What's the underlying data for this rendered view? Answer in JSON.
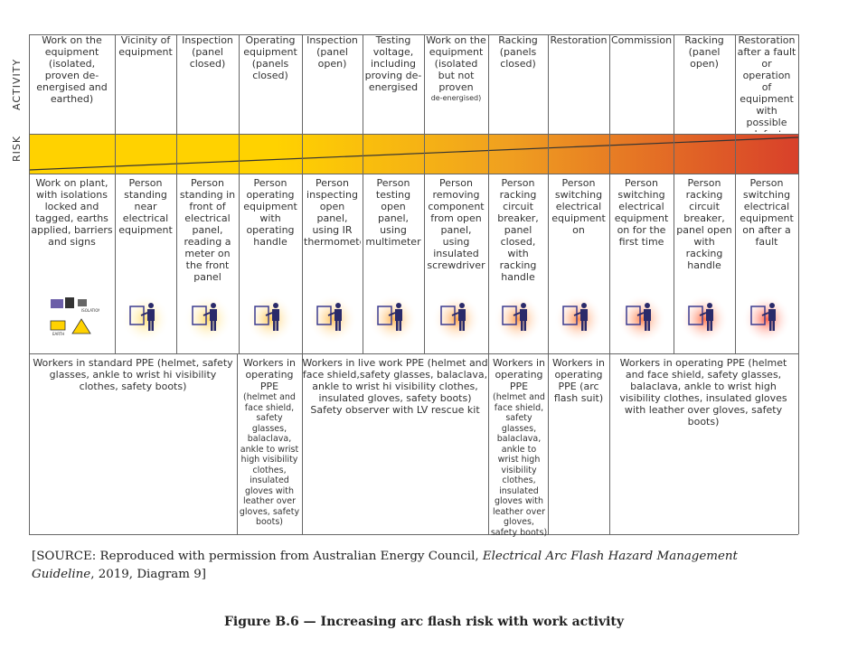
{
  "labels": {
    "activity": "ACTIVITY",
    "risk": "RISK"
  },
  "columns": [
    {
      "activity": "Work on the equipment (isolated, proven de-energised and earthed)",
      "description": "Work on plant, with isolations locked and tagged, earths applied, barriers and signs",
      "icon": "isolation-lock-earth-signs-icon"
    },
    {
      "activity": "Vicinity of equipment",
      "description": "Person standing near electrical equipment",
      "icon": "person-near-equipment-icon"
    },
    {
      "activity": "Inspection (panel closed)",
      "description": "Person standing in front of electrical panel, reading a meter on the front panel",
      "icon": "person-reading-meter-icon"
    },
    {
      "activity": "Operating equipment (panels closed)",
      "description": "Person operating equipment with operating handle",
      "icon": "person-operating-handle-icon"
    },
    {
      "activity": "Inspection (panel open)",
      "description": "Person inspecting open panel, using IR thermometer",
      "icon": "person-ir-thermometer-icon"
    },
    {
      "activity": "Testing voltage, including proving de-energised",
      "description": "Person testing open panel, using multimeter",
      "icon": "person-multimeter-icon"
    },
    {
      "activity_main": "Work on the equipment (isolated but not proven",
      "activity_small": "de-energised)",
      "description": "Person removing component from open panel, using insulated screwdriver",
      "icon": "person-screwdriver-icon"
    },
    {
      "activity": "Racking (panels closed)",
      "description": "Person racking circuit breaker, panel closed, with racking handle",
      "icon": "person-racking-closed-icon"
    },
    {
      "activity": "Restoration",
      "description": "Person switching electrical equipment on",
      "icon": "person-switching-on-icon"
    },
    {
      "activity": "Commissioning",
      "description": "Person switching electrical equipment on for the first time",
      "icon": "person-commissioning-icon"
    },
    {
      "activity": "Racking (panel open)",
      "description": "Person racking circuit breaker, panel open with racking handle",
      "icon": "person-racking-open-icon"
    },
    {
      "activity": "Restoration after a fault or operation of equipment with possible defect",
      "description": "Person switching electrical equipment on after a fault",
      "icon": "person-switching-after-fault-icon"
    }
  ],
  "ppe": [
    {
      "text": "Workers in standard PPE (helmet, safety glasses, ankle to wrist hi visibility clothes, safety boots)"
    },
    {
      "head": "Workers in operating PPE",
      "detail": "(helmet and face shield, safety glasses, balaclava, ankle to wrist high visibility clothes, insulated gloves with leather over gloves, safety boots)"
    },
    {
      "text": "Workers in live work PPE (helmet and face shield,safety glasses, balaclava, ankle to wrist hi visibility clothes, insulated gloves, safety boots)",
      "extra": "Safety observer with LV rescue kit"
    },
    {
      "head": "Workers in operating PPE",
      "detail": "(helmet and face shield, safety glasses, balaclava, ankle to wrist high visibility clothes, insulated gloves with leather over gloves, safety boots)"
    },
    {
      "text": "Workers in operating PPE (arc flash suit)"
    },
    {
      "text": "Workers in operating PPE (helmet and face shield, safety glasses, balaclava, ankle to wrist high visibility clothes, insulated gloves with leather over gloves, safety boots)"
    }
  ],
  "icon_labels": {
    "isolation": "ISOLATION",
    "earth": "EARTH"
  },
  "source": {
    "prefix": "[SOURCE: Reproduced with permission from Australian Energy Council, ",
    "title": "Electrical Arc Flash Hazard Management Guideline",
    "suffix": ", 2019, Diagram 9]"
  },
  "caption": "Figure B.6 — Increasing arc flash risk with work activity",
  "colors": {
    "risk_low": "#ffd200",
    "risk_mid": "#f0a020",
    "risk_high": "#d8402a",
    "line": "#666666"
  }
}
